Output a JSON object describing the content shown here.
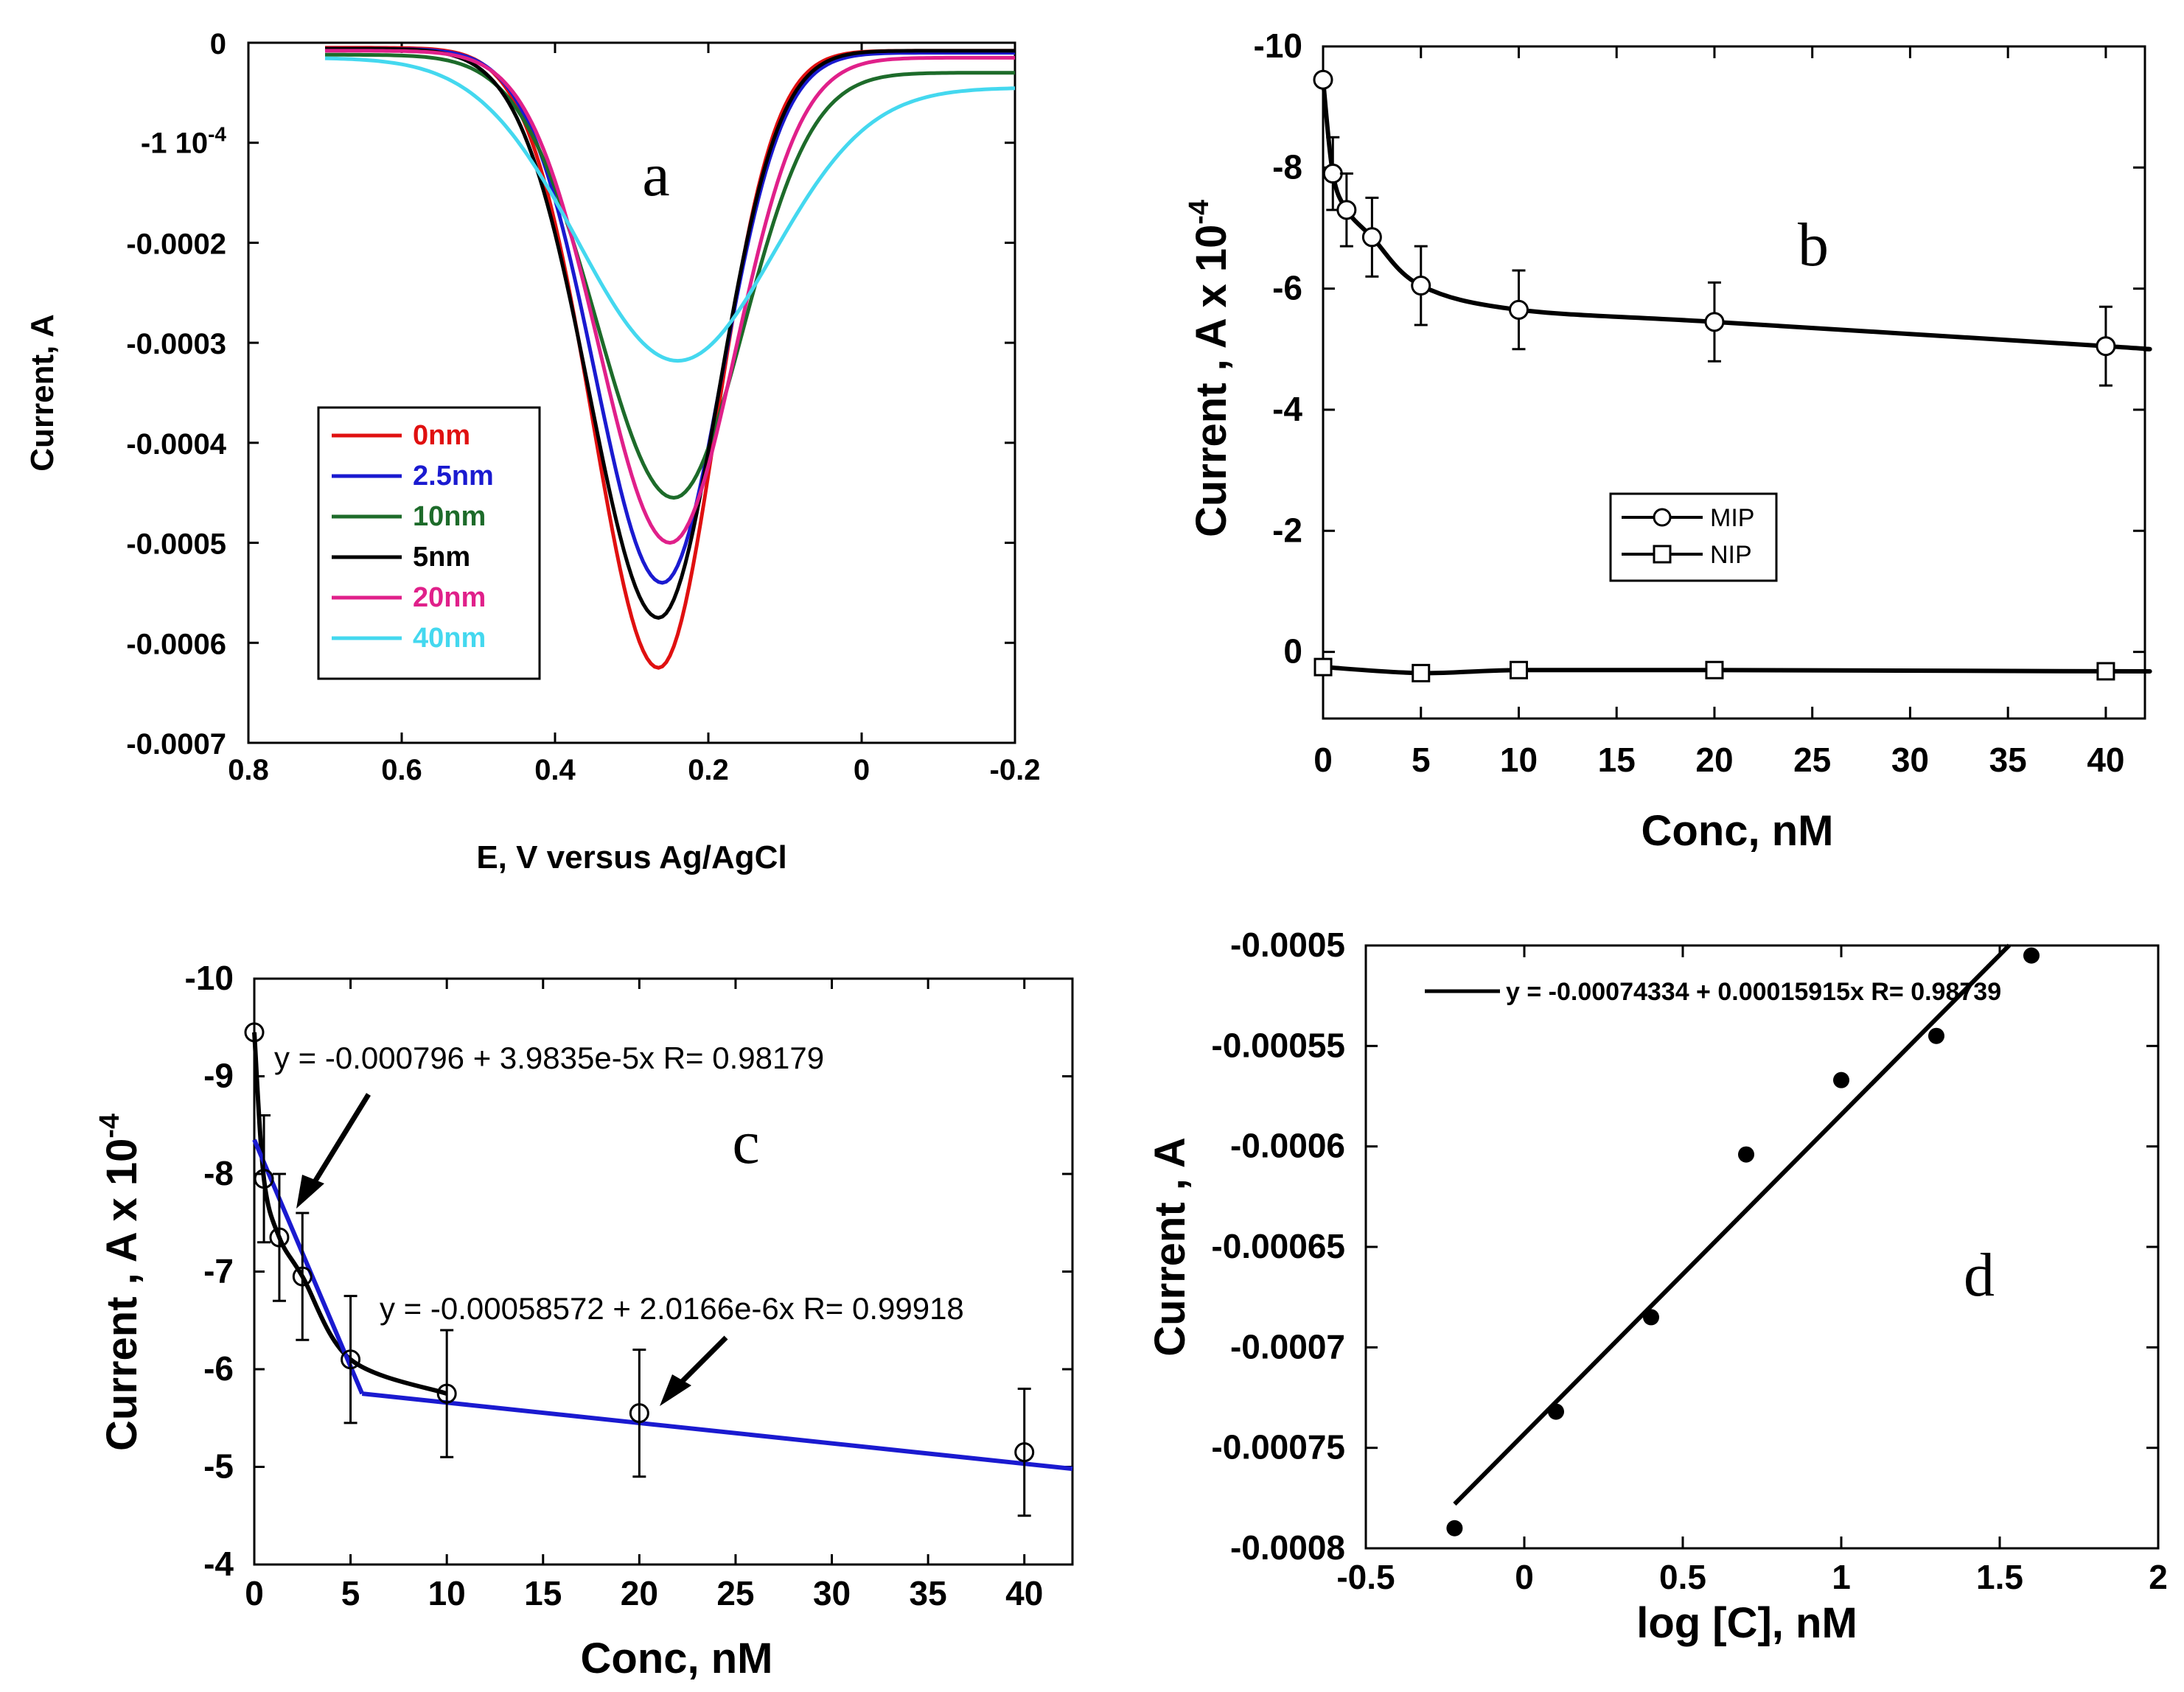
{
  "chart_data": [
    {
      "id": "a",
      "type": "line",
      "panel_label": "a",
      "xlabel": "E, V versus Ag/AgCl",
      "ylabel": "Current, A",
      "xlim": [
        0.8,
        -0.2
      ],
      "ylim": [
        0,
        -0.0007
      ],
      "x_ticks": [
        "0.8",
        "0.6",
        "0.4",
        "0.2",
        "0",
        "-0.2"
      ],
      "x_tick_values": [
        0.8,
        0.6,
        0.4,
        0.2,
        0,
        -0.2
      ],
      "y_ticks": [
        "0",
        "-1 10-4",
        "-0.0002",
        "-0.0003",
        "-0.0004",
        "-0.0005",
        "-0.0006",
        "-0.0007"
      ],
      "y_tick_values": [
        0,
        -0.0001,
        -0.0002,
        -0.0003,
        -0.0004,
        -0.0005,
        -0.0006,
        -0.0007
      ],
      "legend": {
        "position": "lower-left"
      },
      "series": [
        {
          "name": "0nm",
          "color": "#e01010",
          "peak_x": 0.265,
          "peak_y": -0.000625,
          "left_width": 0.085,
          "right_width": 0.075,
          "start_y": -5e-06,
          "end_y": -8e-06,
          "marker": "dot"
        },
        {
          "name": "2.5nm",
          "color": "#1a1ad0",
          "peak_x": 0.26,
          "peak_y": -0.00054,
          "left_width": 0.088,
          "right_width": 0.078,
          "start_y": -6e-06,
          "end_y": -1e-05
        },
        {
          "name": "10nm",
          "color": "#1d6b2a",
          "peak_x": 0.245,
          "peak_y": -0.000455,
          "left_width": 0.1,
          "right_width": 0.09,
          "start_y": -1.2e-05,
          "end_y": -3e-05
        },
        {
          "name": "5nm",
          "color": "#000000",
          "peak_x": 0.265,
          "peak_y": -0.000575,
          "left_width": 0.09,
          "right_width": 0.078,
          "start_y": -6e-06,
          "end_y": -8e-06
        },
        {
          "name": "20nm",
          "color": "#e0208a",
          "peak_x": 0.25,
          "peak_y": -0.0005,
          "left_width": 0.092,
          "right_width": 0.085,
          "start_y": -8e-06,
          "end_y": -1.5e-05
        },
        {
          "name": "40nm",
          "color": "#44d8ef",
          "peak_x": 0.24,
          "peak_y": -0.000318,
          "left_width": 0.13,
          "right_width": 0.125,
          "start_y": -1.5e-05,
          "end_y": -4.5e-05
        }
      ]
    },
    {
      "id": "b",
      "type": "line",
      "panel_label": "b",
      "xlabel": "Conc, nM",
      "ylabel": "Current , A x 10",
      "ylabel_sup": "-4",
      "xlim": [
        0,
        42
      ],
      "ylim": [
        -10,
        1.1
      ],
      "x_ticks": [
        "0",
        "5",
        "10",
        "15",
        "20",
        "25",
        "30",
        "35",
        "40"
      ],
      "x_tick_values": [
        0,
        5,
        10,
        15,
        20,
        25,
        30,
        35,
        40
      ],
      "y_ticks": [
        "-10",
        "-8",
        "-6",
        "-4",
        "-2",
        "0"
      ],
      "y_tick_values": [
        -10,
        -8,
        -6,
        -4,
        -2,
        0
      ],
      "legend": {
        "position": "center",
        "entries": [
          "MIP",
          "NIP"
        ]
      },
      "series": [
        {
          "name": "MIP",
          "marker": "circle",
          "x": [
            0,
            0.5,
            1.2,
            2.5,
            5,
            10,
            20,
            40
          ],
          "y": [
            -9.45,
            -7.9,
            -7.3,
            -6.85,
            -6.05,
            -5.65,
            -5.45,
            -5.05
          ],
          "err": [
            0,
            0.6,
            0.6,
            0.65,
            0.65,
            0.65,
            0.65,
            0.65
          ]
        },
        {
          "name": "NIP",
          "marker": "square",
          "x": [
            0,
            5,
            10,
            20,
            40
          ],
          "y": [
            0.25,
            0.35,
            0.3,
            0.3,
            0.32
          ],
          "err": [
            0,
            0,
            0,
            0,
            0
          ]
        }
      ]
    },
    {
      "id": "c",
      "type": "line",
      "panel_label": "c",
      "xlabel": "Conc, nM",
      "ylabel": "Current , A x 10",
      "ylabel_sup": "-4",
      "xlim": [
        0,
        42.5
      ],
      "ylim": [
        -10,
        -4
      ],
      "x_ticks": [
        "0",
        "5",
        "10",
        "15",
        "20",
        "25",
        "30",
        "35",
        "40"
      ],
      "x_tick_values": [
        0,
        5,
        10,
        15,
        20,
        25,
        30,
        35,
        40
      ],
      "y_ticks": [
        "-10",
        "-9",
        "-8",
        "-7",
        "-6",
        "-5",
        "-4"
      ],
      "y_tick_values": [
        -10,
        -9,
        -8,
        -7,
        -6,
        -5,
        -4
      ],
      "series": [
        {
          "name": "data",
          "marker": "circle",
          "x": [
            0,
            0.5,
            1.3,
            2.5,
            5,
            10,
            20,
            40
          ],
          "y": [
            -9.45,
            -7.95,
            -7.35,
            -6.95,
            -6.1,
            -5.75,
            -5.55,
            -5.15
          ],
          "err": [
            0,
            0.65,
            0.65,
            0.65,
            0.65,
            0.65,
            0.65,
            0.65
          ]
        }
      ],
      "fits": [
        {
          "x": [
            0,
            5.6
          ],
          "y": [
            -8.35,
            -5.75
          ],
          "color": "#1a1ad0",
          "equation": "y = -0.000796 + 3.9835e-5x   R= 0.98179"
        },
        {
          "x": [
            5.6,
            42.5
          ],
          "y": [
            -5.75,
            -4.98
          ],
          "color": "#1a1ad0",
          "equation": "y = -0.00058572 + 2.0166e-6x   R= 0.99918"
        }
      ]
    },
    {
      "id": "d",
      "type": "scatter",
      "panel_label": "d",
      "xlabel": "log [C], nM",
      "ylabel": "Current , A",
      "xlim": [
        -0.5,
        2
      ],
      "ylim": [
        -0.0005,
        -0.0008
      ],
      "x_ticks": [
        "-0.5",
        "0",
        "0.5",
        "1",
        "1.5",
        "2"
      ],
      "x_tick_values": [
        -0.5,
        0,
        0.5,
        1,
        1.5,
        2
      ],
      "y_ticks": [
        "-0.0005",
        "-0.00055",
        "-0.0006",
        "-0.00065",
        "-0.0007",
        "-0.00075",
        "-0.0008"
      ],
      "y_tick_values": [
        -0.0005,
        -0.00055,
        -0.0006,
        -0.00065,
        -0.0007,
        -0.00075,
        -0.0008
      ],
      "legend": {
        "position": "top",
        "entries": [
          "y = -0.00074334 + 0.00015915x   R= 0.98739"
        ]
      },
      "series": [
        {
          "name": "data",
          "marker": "filled-circle",
          "x": [
            -0.22,
            0.1,
            0.4,
            0.7,
            1.0,
            1.3,
            1.6
          ],
          "y": [
            -0.00079,
            -0.000732,
            -0.000685,
            -0.000604,
            -0.000567,
            -0.000545,
            -0.000505
          ]
        }
      ],
      "fits": [
        {
          "x": [
            -0.22,
            1.53
          ],
          "y": [
            -0.000778,
            -0.0004999
          ],
          "color": "#000000"
        }
      ]
    }
  ]
}
